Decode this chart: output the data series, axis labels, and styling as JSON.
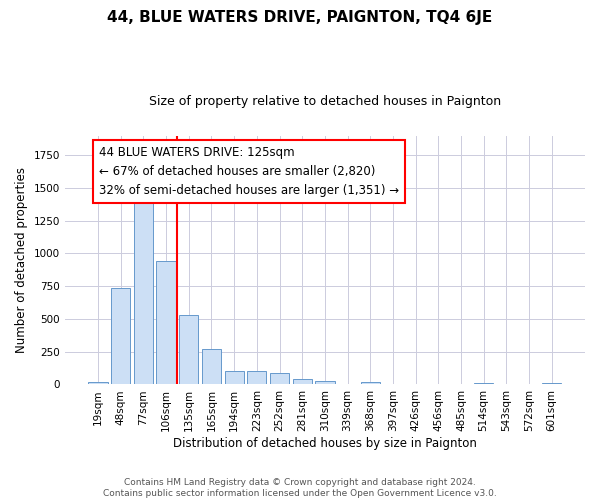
{
  "title": "44, BLUE WATERS DRIVE, PAIGNTON, TQ4 6JE",
  "subtitle": "Size of property relative to detached houses in Paignton",
  "xlabel": "Distribution of detached houses by size in Paignton",
  "ylabel": "Number of detached properties",
  "categories": [
    "19sqm",
    "48sqm",
    "77sqm",
    "106sqm",
    "135sqm",
    "165sqm",
    "194sqm",
    "223sqm",
    "252sqm",
    "281sqm",
    "310sqm",
    "339sqm",
    "368sqm",
    "397sqm",
    "426sqm",
    "456sqm",
    "485sqm",
    "514sqm",
    "543sqm",
    "572sqm",
    "601sqm"
  ],
  "values": [
    22,
    740,
    1430,
    940,
    530,
    270,
    105,
    105,
    90,
    42,
    25,
    0,
    15,
    0,
    0,
    0,
    0,
    13,
    0,
    0,
    13
  ],
  "bar_color": "#ccdff5",
  "bar_edge_color": "#6699cc",
  "property_line_x": 3.5,
  "annotation_line1": "44 BLUE WATERS DRIVE: 125sqm",
  "annotation_line2": "← 67% of detached houses are smaller (2,820)",
  "annotation_line3": "32% of semi-detached houses are larger (1,351) →",
  "footer_line1": "Contains HM Land Registry data © Crown copyright and database right 2024.",
  "footer_line2": "Contains public sector information licensed under the Open Government Licence v3.0.",
  "bg_color": "#ffffff",
  "grid_color": "#ccccdd",
  "ylim_max": 1900,
  "title_fontsize": 11,
  "subtitle_fontsize": 9,
  "axis_label_fontsize": 8.5,
  "tick_fontsize": 7.5,
  "footer_fontsize": 6.5,
  "ann_fontsize": 8.5
}
